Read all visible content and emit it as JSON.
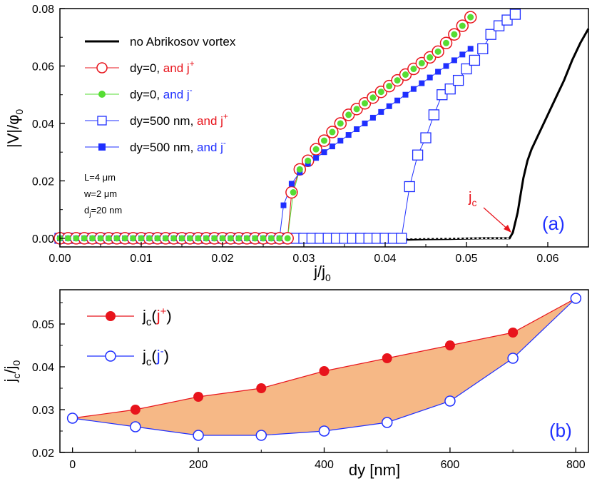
{
  "chart_data": [
    {
      "type": "line",
      "panel_label": "(a)",
      "xlabel_main": "j/j",
      "xlabel_sub": "0",
      "ylabel": "|V|/φ",
      "ylabel_sub": "0",
      "xlim": [
        0.0,
        0.065
      ],
      "ylim": [
        -0.003,
        0.08
      ],
      "xticks": [
        "0.00",
        "0.01",
        "0.02",
        "0.03",
        "0.04",
        "0.05",
        "0.06"
      ],
      "yticks": [
        "0.00",
        "0.02",
        "0.04",
        "0.06",
        "0.08"
      ],
      "annotations": {
        "params": [
          "L=4 μm",
          "w=2 μm",
          "d"
        ],
        "param3_sub": "j",
        "param3_rest": "=20 nm",
        "jc_label": "j",
        "jc_sub": "c"
      },
      "legend": [
        {
          "prefix": "no Abrikosov vortex",
          "suffix": "",
          "sup": ""
        },
        {
          "prefix": "dy=0, ",
          "suffix": "and j",
          "sup": "+"
        },
        {
          "prefix": "dy=0, ",
          "suffix": "and j",
          "sup": "-"
        },
        {
          "prefix": "dy=500 nm, ",
          "suffix": "and j",
          "sup": "+"
        },
        {
          "prefix": "dy=500 nm, ",
          "suffix": "and j",
          "sup": "-"
        }
      ],
      "colors": {
        "red": "#e8141c",
        "blue": "#1f2fff",
        "green": "#55dd33",
        "black": "#000000"
      },
      "series": [
        {
          "name": "no Abrikosov vortex",
          "style": "black-line",
          "x": [
            0.0423,
            0.045,
            0.048,
            0.05,
            0.052,
            0.054,
            0.0553,
            0.0557,
            0.0563,
            0.0567,
            0.057,
            0.0575,
            0.058,
            0.059,
            0.06,
            0.061,
            0.062,
            0.063,
            0.064,
            0.065
          ],
          "y": [
            -0.0005,
            -0.0003,
            -0.0002,
            -0.0001,
            0.0,
            0.0,
            0.0,
            0.002,
            0.009,
            0.016,
            0.021,
            0.027,
            0.031,
            0.037,
            0.043,
            0.049,
            0.055,
            0.062,
            0.068,
            0.073
          ]
        },
        {
          "name": "dy=0, and j+",
          "style": "red-open-circle",
          "x": [
            0.0,
            0.001,
            0.002,
            0.003,
            0.004,
            0.005,
            0.006,
            0.007,
            0.008,
            0.009,
            0.01,
            0.011,
            0.012,
            0.013,
            0.014,
            0.015,
            0.016,
            0.017,
            0.018,
            0.019,
            0.02,
            0.021,
            0.022,
            0.023,
            0.024,
            0.025,
            0.026,
            0.027,
            0.028,
            0.0285,
            0.0295,
            0.0305,
            0.0315,
            0.0325,
            0.0335,
            0.0345,
            0.0355,
            0.0365,
            0.0375,
            0.0385,
            0.0395,
            0.0405,
            0.0415,
            0.0425,
            0.0435,
            0.0445,
            0.0455,
            0.0465,
            0.0475,
            0.0485,
            0.0495,
            0.0505
          ],
          "y": [
            0,
            0,
            0,
            0,
            0,
            0,
            0,
            0,
            0,
            0,
            0,
            0,
            0,
            0,
            0,
            0,
            0,
            0,
            0,
            0,
            0,
            0,
            0,
            0,
            0,
            0,
            0,
            0,
            0,
            0.016,
            0.024,
            0.027,
            0.031,
            0.034,
            0.037,
            0.04,
            0.043,
            0.045,
            0.047,
            0.049,
            0.051,
            0.053,
            0.055,
            0.057,
            0.059,
            0.061,
            0.063,
            0.065,
            0.068,
            0.071,
            0.074,
            0.077
          ]
        },
        {
          "name": "dy=0, and j-",
          "style": "green-dot",
          "x": [
            0.0,
            0.001,
            0.002,
            0.003,
            0.004,
            0.005,
            0.006,
            0.007,
            0.008,
            0.009,
            0.01,
            0.011,
            0.012,
            0.013,
            0.014,
            0.015,
            0.016,
            0.017,
            0.018,
            0.019,
            0.02,
            0.021,
            0.022,
            0.023,
            0.024,
            0.025,
            0.026,
            0.027,
            0.028,
            0.0287,
            0.0295,
            0.0305,
            0.0315,
            0.0325,
            0.0335,
            0.0345,
            0.0355,
            0.0365,
            0.0375,
            0.0385,
            0.0395,
            0.0405,
            0.0415,
            0.0425,
            0.0435,
            0.0445,
            0.0455,
            0.0465,
            0.0475,
            0.0485,
            0.0495,
            0.0505
          ],
          "y": [
            0,
            0,
            0,
            0,
            0,
            0,
            0,
            0,
            0,
            0,
            0,
            0,
            0,
            0,
            0,
            0,
            0,
            0,
            0,
            0,
            0,
            0,
            0,
            0,
            0,
            0,
            0,
            0,
            0,
            0.016,
            0.024,
            0.027,
            0.031,
            0.034,
            0.037,
            0.04,
            0.043,
            0.045,
            0.047,
            0.049,
            0.051,
            0.053,
            0.055,
            0.057,
            0.059,
            0.061,
            0.063,
            0.065,
            0.068,
            0.071,
            0.074,
            0.077
          ]
        },
        {
          "name": "dy=500 nm, and j+",
          "style": "blue-open-square",
          "x": [
            0.0,
            0.001,
            0.002,
            0.003,
            0.004,
            0.005,
            0.006,
            0.007,
            0.008,
            0.009,
            0.01,
            0.011,
            0.012,
            0.013,
            0.014,
            0.015,
            0.016,
            0.017,
            0.018,
            0.019,
            0.02,
            0.021,
            0.022,
            0.023,
            0.024,
            0.025,
            0.026,
            0.027,
            0.028,
            0.029,
            0.03,
            0.031,
            0.032,
            0.033,
            0.034,
            0.035,
            0.036,
            0.037,
            0.038,
            0.039,
            0.04,
            0.041,
            0.042,
            0.043,
            0.044,
            0.045,
            0.046,
            0.047,
            0.048,
            0.049,
            0.05,
            0.051,
            0.052,
            0.053,
            0.054,
            0.055,
            0.056
          ],
          "y": [
            0,
            0,
            0,
            0,
            0,
            0,
            0,
            0,
            0,
            0,
            0,
            0,
            0,
            0,
            0,
            0,
            0,
            0,
            0,
            0,
            0,
            0,
            0,
            0,
            0,
            0,
            0,
            0,
            0,
            0,
            0,
            0,
            0,
            0,
            0,
            0,
            0,
            0,
            0,
            0,
            0,
            0,
            0,
            0.018,
            0.029,
            0.035,
            0.043,
            0.05,
            0.052,
            0.055,
            0.059,
            0.062,
            0.066,
            0.071,
            0.074,
            0.076,
            0.078
          ]
        },
        {
          "name": "dy=500 nm, and j-",
          "style": "blue-filled-square",
          "x": [
            0.0,
            0.001,
            0.002,
            0.003,
            0.004,
            0.005,
            0.006,
            0.007,
            0.008,
            0.009,
            0.01,
            0.011,
            0.012,
            0.013,
            0.014,
            0.015,
            0.016,
            0.017,
            0.018,
            0.019,
            0.02,
            0.021,
            0.022,
            0.023,
            0.024,
            0.025,
            0.026,
            0.027,
            0.0275,
            0.0285,
            0.0295,
            0.0305,
            0.0315,
            0.0325,
            0.0335,
            0.0345,
            0.0355,
            0.0365,
            0.0375,
            0.0385,
            0.0395,
            0.0405,
            0.0415,
            0.0425,
            0.0435,
            0.0445,
            0.0455,
            0.0465,
            0.0475,
            0.0485,
            0.0495,
            0.0505
          ],
          "y": [
            0,
            0,
            0,
            0,
            0,
            0,
            0,
            0,
            0,
            0,
            0,
            0,
            0,
            0,
            0,
            0,
            0,
            0,
            0,
            0,
            0,
            0,
            0,
            0,
            0,
            0,
            0,
            0,
            0.0115,
            0.019,
            0.023,
            0.026,
            0.028,
            0.03,
            0.032,
            0.034,
            0.036,
            0.038,
            0.04,
            0.042,
            0.044,
            0.046,
            0.048,
            0.05,
            0.052,
            0.054,
            0.056,
            0.058,
            0.06,
            0.062,
            0.064,
            0.066
          ]
        }
      ]
    },
    {
      "type": "line",
      "panel_label": "(b)",
      "xlabel": "dy [nm]",
      "ylabel_main": "j",
      "ylabel_sub": "c",
      "ylabel_over": "/j",
      "ylabel_sub2": "0",
      "xlim": [
        -20,
        820
      ],
      "ylim": [
        0.02,
        0.058
      ],
      "xticks": [
        "0",
        "200",
        "400",
        "600",
        "800"
      ],
      "yticks": [
        "0.02",
        "0.03",
        "0.04",
        "0.05"
      ],
      "legend": [
        {
          "main": "j",
          "sub": "c",
          "open": "(",
          "inner": "j",
          "sup": "+",
          "close": ")"
        },
        {
          "main": "j",
          "sub": "c",
          "open": "(",
          "inner": "j",
          "sup": "-",
          "close": ")"
        }
      ],
      "fill_color": "#f6b886",
      "series": [
        {
          "name": "jc(j+)",
          "x": [
            0,
            100,
            200,
            300,
            400,
            500,
            600,
            700,
            800
          ],
          "y": [
            0.028,
            0.03,
            0.033,
            0.035,
            0.039,
            0.042,
            0.045,
            0.048,
            0.056
          ]
        },
        {
          "name": "jc(j-)",
          "x": [
            0,
            100,
            200,
            300,
            400,
            500,
            600,
            700,
            800
          ],
          "y": [
            0.028,
            0.026,
            0.024,
            0.024,
            0.025,
            0.027,
            0.032,
            0.042,
            0.056
          ]
        }
      ]
    }
  ]
}
